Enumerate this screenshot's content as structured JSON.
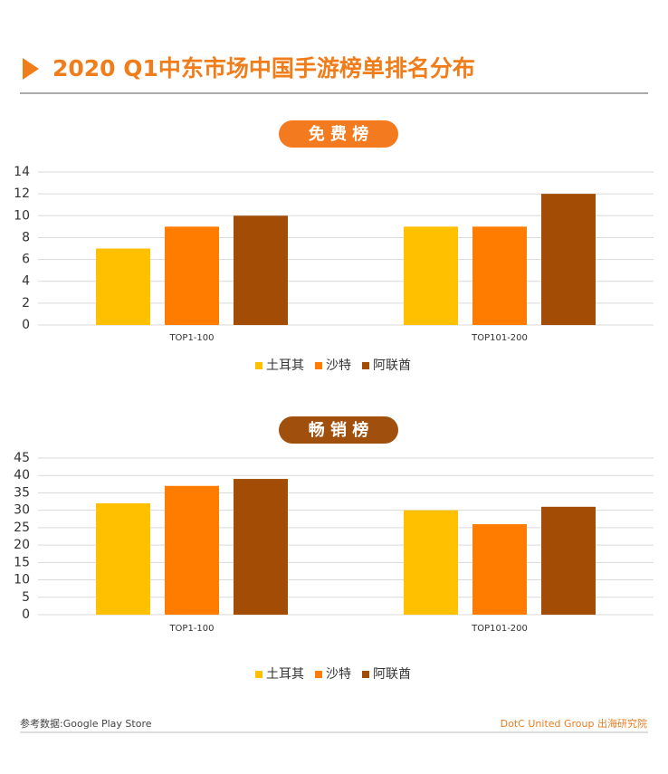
{
  "header": {
    "title": "2020 Q1中东市场中国手游榜单排名分布"
  },
  "chart_data": [
    {
      "type": "bar",
      "title": "免 费 榜",
      "title_color": "#f47a1f",
      "categories": [
        "TOP1-100",
        "TOP101-200"
      ],
      "series": [
        {
          "name": "土耳其",
          "color": "#ffc000",
          "values": [
            7,
            9
          ]
        },
        {
          "name": "沙特",
          "color": "#ff7c00",
          "values": [
            9,
            9
          ]
        },
        {
          "name": "阿联酋",
          "color": "#a34c05",
          "values": [
            10,
            12
          ]
        }
      ],
      "ylim": [
        0,
        14
      ],
      "yticks": [
        0,
        2,
        4,
        6,
        8,
        10,
        12,
        14
      ],
      "grid": true,
      "legend": "bottom"
    },
    {
      "type": "bar",
      "title": "畅 销 榜",
      "title_color": "#a0500c",
      "categories": [
        "TOP1-100",
        "TOP101-200"
      ],
      "series": [
        {
          "name": "土耳其",
          "color": "#ffc000",
          "values": [
            32,
            30
          ]
        },
        {
          "name": "沙特",
          "color": "#ff7c00",
          "values": [
            37,
            26
          ]
        },
        {
          "name": "阿联酋",
          "color": "#a34c05",
          "values": [
            39,
            31
          ]
        }
      ],
      "ylim": [
        0,
        45
      ],
      "yticks": [
        0,
        5,
        10,
        15,
        20,
        25,
        30,
        35,
        40,
        45
      ],
      "grid": true,
      "legend": "bottom"
    }
  ],
  "footer": {
    "source": "参考数据:Google Play Store",
    "brand": "DotC United Group 出海研究院"
  }
}
